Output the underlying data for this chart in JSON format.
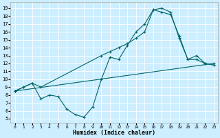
{
  "xlabel": "Humidex (Indice chaleur)",
  "background_color": "#cceeff",
  "grid_color": "#ffffff",
  "line_color": "#006666",
  "xlim": [
    -0.5,
    23.5
  ],
  "ylim": [
    4.5,
    19.8
  ],
  "xticks": [
    0,
    1,
    2,
    3,
    4,
    5,
    6,
    7,
    8,
    9,
    10,
    11,
    12,
    13,
    14,
    15,
    16,
    17,
    18,
    19,
    20,
    21,
    22,
    23
  ],
  "yticks": [
    5,
    6,
    7,
    8,
    9,
    10,
    11,
    12,
    13,
    14,
    15,
    16,
    17,
    18,
    19
  ],
  "curve1_x": [
    0,
    1,
    2,
    3,
    4,
    5,
    6,
    7,
    8,
    9,
    10,
    11,
    12,
    13,
    14,
    15,
    16,
    17,
    18,
    19,
    20,
    21,
    22,
    23
  ],
  "curve1_y": [
    8.5,
    9.0,
    9.5,
    7.5,
    8.0,
    7.8,
    6.2,
    5.5,
    5.2,
    6.5,
    10.0,
    12.8,
    12.5,
    14.3,
    16.0,
    17.0,
    18.8,
    18.5,
    18.2,
    15.5,
    12.5,
    13.0,
    12.0,
    11.8
  ],
  "curve2_x": [
    0,
    1,
    2,
    3,
    10,
    11,
    12,
    13,
    14,
    15,
    16,
    17,
    18,
    19,
    20,
    21,
    22,
    23
  ],
  "curve2_y": [
    8.5,
    9.0,
    9.5,
    9.0,
    13.0,
    13.5,
    14.0,
    14.5,
    15.2,
    16.0,
    18.8,
    19.0,
    18.5,
    15.2,
    12.5,
    12.5,
    12.0,
    11.8
  ],
  "curve3_x": [
    0,
    23
  ],
  "curve3_y": [
    8.5,
    12.0
  ]
}
